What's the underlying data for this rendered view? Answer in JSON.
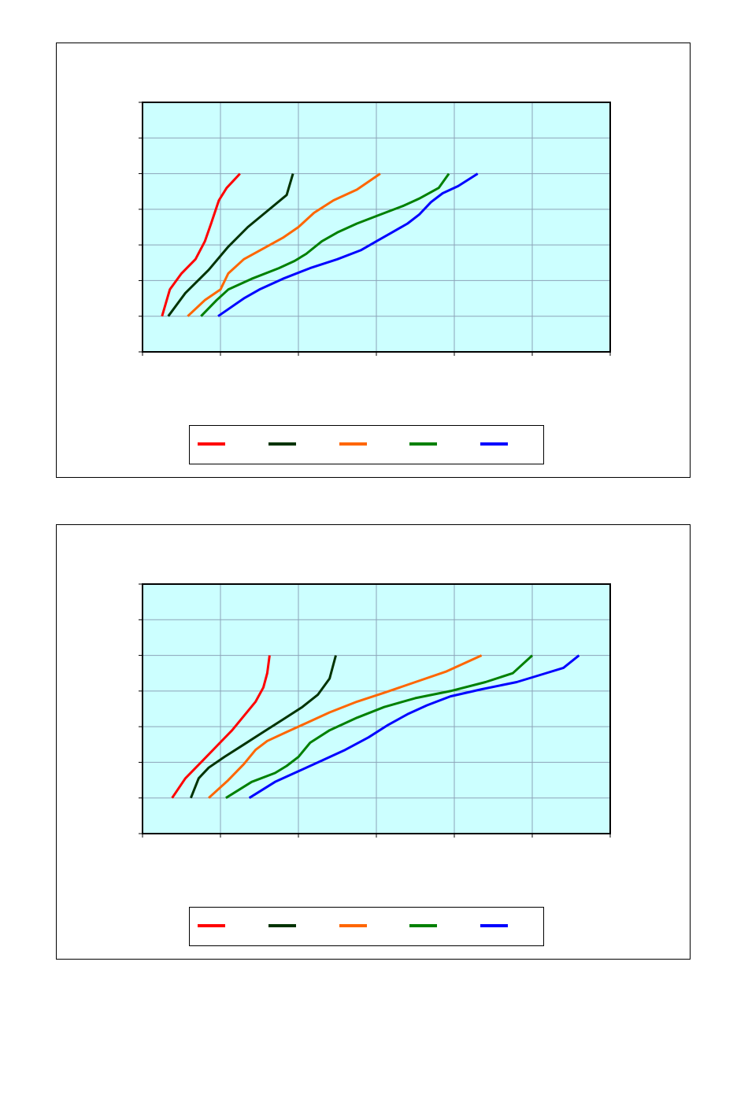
{
  "colors": {
    "plot_background": "#ccffff",
    "grid": "#8da3b8",
    "axis": "#000000",
    "series_colors": [
      "#ff0000",
      "#003300",
      "#ff6600",
      "#008000",
      "#0000ff"
    ]
  },
  "chart_data": [
    {
      "type": "line",
      "title": "",
      "xlabel": "",
      "ylabel": "",
      "xlim": [
        0,
        6
      ],
      "ylim": [
        0,
        7
      ],
      "x_gridlines": [
        1,
        2,
        3,
        4,
        5
      ],
      "y_gridlines": [
        1,
        2,
        3,
        4,
        5,
        6
      ],
      "grid": true,
      "legend": "bottom",
      "series": [
        {
          "color": "#ff0000",
          "points": [
            [
              0.25,
              1.0
            ],
            [
              0.35,
              1.75
            ],
            [
              0.5,
              2.2
            ],
            [
              0.68,
              2.6
            ],
            [
              0.8,
              3.1
            ],
            [
              0.88,
              3.6
            ],
            [
              0.98,
              4.25
            ],
            [
              1.08,
              4.6
            ],
            [
              1.25,
              5.0
            ]
          ]
        },
        {
          "color": "#003300",
          "points": [
            [
              0.33,
              1.0
            ],
            [
              0.55,
              1.65
            ],
            [
              0.85,
              2.3
            ],
            [
              1.1,
              2.95
            ],
            [
              1.35,
              3.5
            ],
            [
              1.6,
              3.95
            ],
            [
              1.85,
              4.4
            ],
            [
              1.93,
              5.0
            ]
          ]
        },
        {
          "color": "#ff6600",
          "points": [
            [
              0.58,
              1.0
            ],
            [
              0.8,
              1.45
            ],
            [
              1.0,
              1.75
            ],
            [
              1.1,
              2.2
            ],
            [
              1.3,
              2.6
            ],
            [
              1.55,
              2.9
            ],
            [
              1.8,
              3.2
            ],
            [
              2.0,
              3.5
            ],
            [
              2.2,
              3.9
            ],
            [
              2.45,
              4.25
            ],
            [
              2.75,
              4.55
            ],
            [
              3.05,
              5.0
            ]
          ]
        },
        {
          "color": "#008000",
          "points": [
            [
              0.75,
              1.0
            ],
            [
              0.95,
              1.45
            ],
            [
              1.1,
              1.75
            ],
            [
              1.4,
              2.05
            ],
            [
              1.75,
              2.35
            ],
            [
              1.95,
              2.55
            ],
            [
              2.1,
              2.75
            ],
            [
              2.3,
              3.1
            ],
            [
              2.5,
              3.35
            ],
            [
              2.75,
              3.6
            ],
            [
              3.05,
              3.85
            ],
            [
              3.35,
              4.1
            ],
            [
              3.55,
              4.3
            ],
            [
              3.8,
              4.6
            ],
            [
              3.93,
              5.0
            ]
          ]
        },
        {
          "color": "#0000ff",
          "points": [
            [
              0.97,
              1.0
            ],
            [
              1.3,
              1.5
            ],
            [
              1.5,
              1.75
            ],
            [
              1.8,
              2.05
            ],
            [
              2.15,
              2.35
            ],
            [
              2.5,
              2.6
            ],
            [
              2.8,
              2.85
            ],
            [
              3.0,
              3.1
            ],
            [
              3.2,
              3.35
            ],
            [
              3.4,
              3.6
            ],
            [
              3.55,
              3.85
            ],
            [
              3.7,
              4.2
            ],
            [
              3.85,
              4.45
            ],
            [
              4.05,
              4.65
            ],
            [
              4.3,
              5.0
            ]
          ]
        }
      ]
    },
    {
      "type": "line",
      "title": "",
      "xlabel": "",
      "ylabel": "",
      "xlim": [
        0,
        6
      ],
      "ylim": [
        0,
        7
      ],
      "x_gridlines": [
        1,
        2,
        3,
        4,
        5
      ],
      "y_gridlines": [
        1,
        2,
        3,
        4,
        5,
        6
      ],
      "grid": true,
      "legend": "bottom",
      "series": [
        {
          "color": "#ff0000",
          "points": [
            [
              0.38,
              1.0
            ],
            [
              0.55,
              1.55
            ],
            [
              0.75,
              2.0
            ],
            [
              0.95,
              2.45
            ],
            [
              1.15,
              2.9
            ],
            [
              1.3,
              3.3
            ],
            [
              1.45,
              3.7
            ],
            [
              1.55,
              4.1
            ],
            [
              1.6,
              4.5
            ],
            [
              1.63,
              5.0
            ]
          ]
        },
        {
          "color": "#003300",
          "points": [
            [
              0.62,
              1.0
            ],
            [
              0.72,
              1.55
            ],
            [
              0.85,
              1.85
            ],
            [
              1.05,
              2.15
            ],
            [
              1.3,
              2.5
            ],
            [
              1.55,
              2.85
            ],
            [
              1.8,
              3.2
            ],
            [
              2.05,
              3.55
            ],
            [
              2.25,
              3.9
            ],
            [
              2.4,
              4.35
            ],
            [
              2.48,
              5.0
            ]
          ]
        },
        {
          "color": "#ff6600",
          "points": [
            [
              0.85,
              1.0
            ],
            [
              1.1,
              1.5
            ],
            [
              1.3,
              1.95
            ],
            [
              1.45,
              2.35
            ],
            [
              1.6,
              2.6
            ],
            [
              1.85,
              2.85
            ],
            [
              2.1,
              3.1
            ],
            [
              2.4,
              3.4
            ],
            [
              2.75,
              3.7
            ],
            [
              3.1,
              3.95
            ],
            [
              3.5,
              4.25
            ],
            [
              3.9,
              4.55
            ],
            [
              4.35,
              5.0
            ]
          ]
        },
        {
          "color": "#008000",
          "points": [
            [
              1.07,
              1.0
            ],
            [
              1.4,
              1.45
            ],
            [
              1.7,
              1.7
            ],
            [
              1.85,
              1.9
            ],
            [
              2.0,
              2.15
            ],
            [
              2.15,
              2.55
            ],
            [
              2.4,
              2.9
            ],
            [
              2.75,
              3.25
            ],
            [
              3.1,
              3.55
            ],
            [
              3.5,
              3.8
            ],
            [
              3.95,
              4.0
            ],
            [
              4.4,
              4.25
            ],
            [
              4.75,
              4.5
            ],
            [
              5.0,
              5.0
            ]
          ]
        },
        {
          "color": "#0000ff",
          "points": [
            [
              1.37,
              1.0
            ],
            [
              1.7,
              1.45
            ],
            [
              2.0,
              1.75
            ],
            [
              2.3,
              2.05
            ],
            [
              2.6,
              2.35
            ],
            [
              2.9,
              2.7
            ],
            [
              3.15,
              3.05
            ],
            [
              3.4,
              3.35
            ],
            [
              3.65,
              3.6
            ],
            [
              3.95,
              3.85
            ],
            [
              4.35,
              4.05
            ],
            [
              4.8,
              4.25
            ],
            [
              5.1,
              4.45
            ],
            [
              5.4,
              4.65
            ],
            [
              5.6,
              5.0
            ]
          ]
        }
      ]
    }
  ]
}
